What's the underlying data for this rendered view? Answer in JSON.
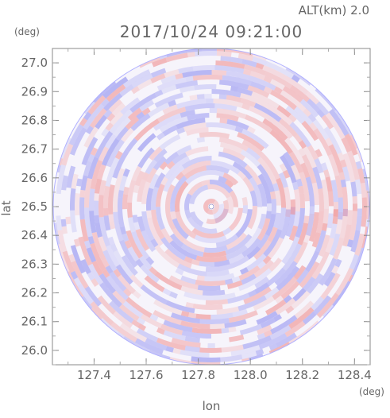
{
  "header": {
    "altitude_label": "ALT(km) 2.0",
    "timestamp": "2017/10/24 09:21:00"
  },
  "chart_data": {
    "type": "heatmap",
    "title": "2017/10/24 09:21:00",
    "subtitle": "ALT(km) 2.0",
    "xlabel": "lon",
    "ylabel": "lat",
    "x_unit": "(deg)",
    "y_unit": "(deg)",
    "xlim": [
      127.24,
      128.46
    ],
    "ylim": [
      25.95,
      27.05
    ],
    "x_ticks": [
      "127.4",
      "127.6",
      "127.8",
      "128.0",
      "128.2",
      "128.4"
    ],
    "y_ticks": [
      "26.0",
      "26.1",
      "26.2",
      "26.3",
      "26.4",
      "26.5",
      "26.6",
      "26.7",
      "26.8",
      "26.9",
      "27.0"
    ],
    "grid": false,
    "field": {
      "shape": "circle",
      "center_lon": 127.85,
      "center_lat": 26.5,
      "radius_lat_deg": 0.55,
      "description_colors": {
        "negative": "#8c8cf0",
        "neutral": "#ffffff",
        "positive": "#f08c8c"
      }
    }
  }
}
